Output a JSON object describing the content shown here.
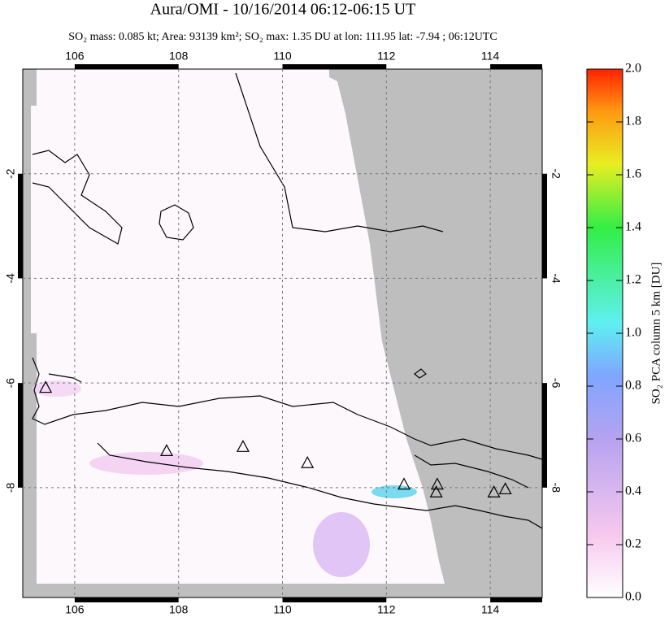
{
  "chart_data": {
    "type": "map",
    "title": "Aura/OMI - 10/16/2014 06:12-06:15 UT",
    "subtitle": "SO₂ mass: 0.085 kt; Area: 93139 km²; SO₂ max: 1.35 DU at lon: 111.95 lat: -7.94 ; 06:12UTC",
    "xlim": [
      105,
      115
    ],
    "ylim": [
      -10.1,
      0
    ],
    "xticks": [
      106,
      108,
      110,
      112,
      114
    ],
    "yticks": [
      -2,
      -4,
      -6,
      -8
    ],
    "grid": true,
    "volcanoes": {
      "lon": [
        105.44,
        107.77,
        109.24,
        110.48,
        112.34,
        112.98,
        112.96,
        114.07,
        114.29
      ],
      "lat": [
        -6.1,
        -7.31,
        -7.23,
        -7.54,
        -7.95,
        -7.95,
        -8.1,
        -8.1,
        -8.04
      ]
    },
    "colorbar": {
      "label": "SO₂ PCA column 5 km [DU]",
      "lim": [
        0,
        2
      ],
      "ticks": [
        {
          "value": 0,
          "label": "0.0"
        },
        {
          "value": 0.2,
          "label": "0.2"
        },
        {
          "value": 0.4,
          "label": "0.4"
        },
        {
          "value": 0.6,
          "label": "0.6"
        },
        {
          "value": 0.8,
          "label": "0.8"
        },
        {
          "value": 1,
          "label": "1.0"
        },
        {
          "value": 1.2,
          "label": "1.2"
        },
        {
          "value": 1.4,
          "label": "1.4"
        },
        {
          "value": 1.6,
          "label": "1.6"
        },
        {
          "value": 1.8,
          "label": "1.8"
        },
        {
          "value": 2,
          "label": "2.0"
        }
      ]
    }
  }
}
